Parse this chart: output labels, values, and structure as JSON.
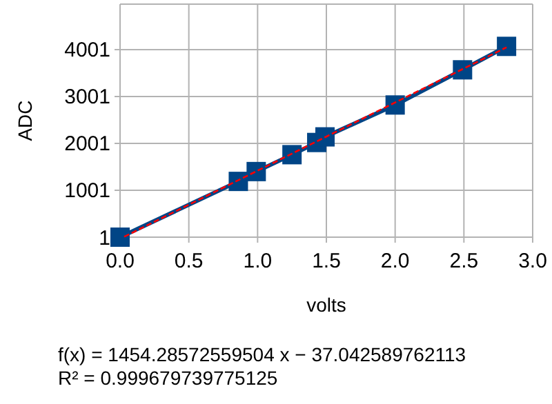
{
  "chart_data": {
    "type": "line",
    "xlabel": "volts",
    "ylabel": "ADC",
    "xlim": [
      0,
      3
    ],
    "xticks": [
      {
        "value": 0,
        "label": "0.0"
      },
      {
        "value": 0.5,
        "label": "0.5"
      },
      {
        "value": 1,
        "label": "1.0"
      },
      {
        "value": 1.5,
        "label": "1.5"
      },
      {
        "value": 2,
        "label": "2.0"
      },
      {
        "value": 2.5,
        "label": "2.5"
      },
      {
        "value": 3,
        "label": "3.0"
      }
    ],
    "ylim": [
      1,
      4971
    ],
    "yticks": [
      1,
      1001,
      2001,
      3001,
      4001
    ],
    "grid": true,
    "series": [
      {
        "color": "#004586",
        "marker": "square",
        "line_style": "solid",
        "x": [
          0,
          0.86,
          0.99,
          1.25,
          1.43,
          1.49,
          2.0,
          2.49,
          2.81
        ],
        "values": [
          1,
          1190,
          1400,
          1760,
          2020,
          2140,
          2820,
          3570,
          4070
        ]
      },
      {
        "color": "#ff0000",
        "marker": "none",
        "line_style": "dashed",
        "x": [
          0.03,
          2.81
        ],
        "values": [
          10,
          4050
        ]
      }
    ],
    "annotations": [
      "f(x) = 1454.28572559504 x − 37.042589762113",
      "R² = 0.999679739775125"
    ]
  }
}
